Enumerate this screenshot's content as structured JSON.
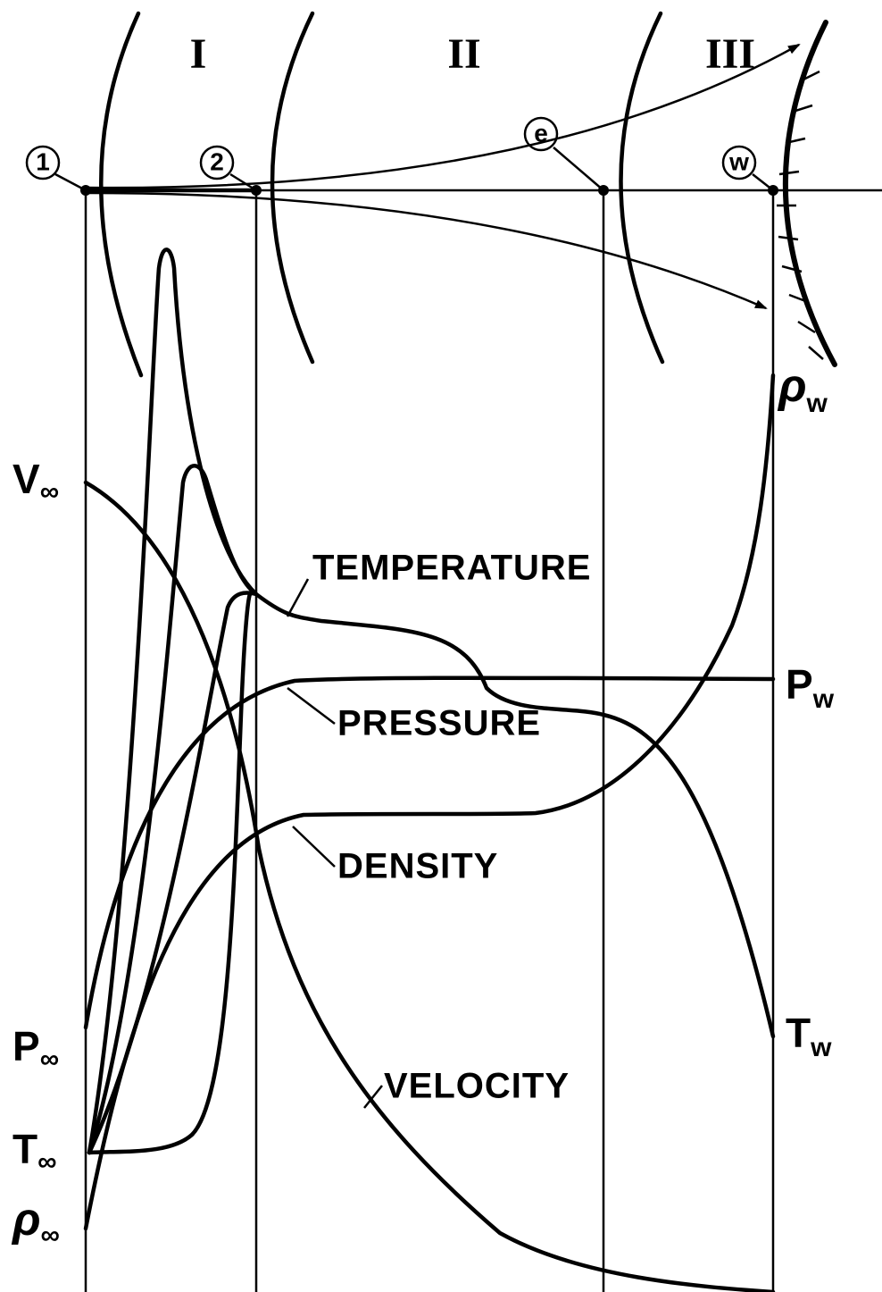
{
  "regions": [
    "I",
    "II",
    "III"
  ],
  "stations": [
    "1",
    "2",
    "e",
    "w"
  ],
  "curve_labels": {
    "temperature": "TEMPERATURE",
    "pressure": "PRESSURE",
    "density": "DENSITY",
    "velocity": "VELOCITY"
  },
  "left_labels": [
    {
      "symbol": "V",
      "subscript": "∞"
    },
    {
      "symbol": "P",
      "subscript": "∞"
    },
    {
      "symbol": "T",
      "subscript": "∞"
    },
    {
      "symbol": "ρ",
      "subscript": "∞"
    }
  ],
  "right_labels": [
    {
      "symbol": "ρ",
      "subscript": "w"
    },
    {
      "symbol": "P",
      "subscript": "w"
    },
    {
      "symbol": "T",
      "subscript": "w"
    }
  ]
}
